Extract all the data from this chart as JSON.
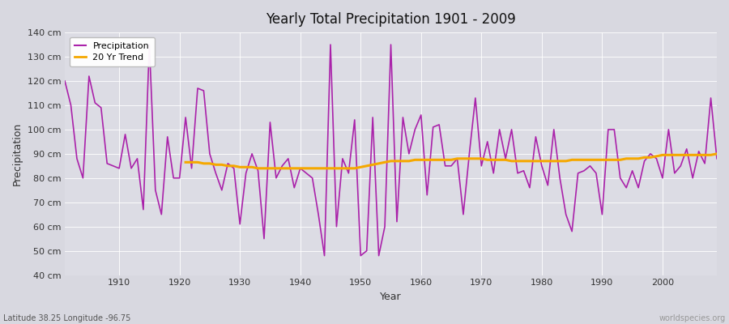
{
  "title": "Yearly Total Precipitation 1901 - 2009",
  "xlabel": "Year",
  "ylabel": "Precipitation",
  "subtitle": "Latitude 38.25 Longitude -96.75",
  "watermark": "worldspecies.org",
  "background_color": "#d8d8e0",
  "plot_bg_color": "#dcdce4",
  "line_color": "#aa22aa",
  "trend_color": "#f5a800",
  "ylim": [
    40,
    140
  ],
  "xlim": [
    1901,
    2009
  ],
  "yticks": [
    40,
    50,
    60,
    70,
    80,
    90,
    100,
    110,
    120,
    130,
    140
  ],
  "xticks": [
    1910,
    1920,
    1930,
    1940,
    1950,
    1960,
    1970,
    1980,
    1990,
    2000
  ],
  "years": [
    1901,
    1902,
    1903,
    1904,
    1905,
    1906,
    1907,
    1908,
    1909,
    1910,
    1911,
    1912,
    1913,
    1914,
    1915,
    1916,
    1917,
    1918,
    1919,
    1920,
    1921,
    1922,
    1923,
    1924,
    1925,
    1926,
    1927,
    1928,
    1929,
    1930,
    1931,
    1932,
    1933,
    1934,
    1935,
    1936,
    1937,
    1938,
    1939,
    1940,
    1941,
    1942,
    1943,
    1944,
    1945,
    1946,
    1947,
    1948,
    1949,
    1950,
    1951,
    1952,
    1953,
    1954,
    1955,
    1956,
    1957,
    1958,
    1959,
    1960,
    1961,
    1962,
    1963,
    1964,
    1965,
    1966,
    1967,
    1968,
    1969,
    1970,
    1971,
    1972,
    1973,
    1974,
    1975,
    1976,
    1977,
    1978,
    1979,
    1980,
    1981,
    1982,
    1983,
    1984,
    1985,
    1986,
    1987,
    1988,
    1989,
    1990,
    1991,
    1992,
    1993,
    1994,
    1995,
    1996,
    1997,
    1998,
    1999,
    2000,
    2001,
    2002,
    2003,
    2004,
    2005,
    2006,
    2007,
    2008,
    2009
  ],
  "precipitation": [
    120,
    110,
    88,
    80,
    122,
    111,
    109,
    86,
    85,
    84,
    98,
    84,
    88,
    67,
    135,
    75,
    65,
    97,
    80,
    80,
    105,
    84,
    117,
    116,
    90,
    82,
    75,
    86,
    84,
    61,
    82,
    90,
    83,
    55,
    103,
    80,
    85,
    88,
    76,
    84,
    82,
    80,
    65,
    48,
    135,
    60,
    88,
    82,
    104,
    48,
    50,
    105,
    48,
    60,
    135,
    62,
    105,
    90,
    100,
    106,
    73,
    101,
    102,
    85,
    85,
    88,
    65,
    90,
    113,
    85,
    95,
    82,
    100,
    88,
    100,
    82,
    83,
    76,
    97,
    85,
    77,
    100,
    80,
    65,
    58,
    82,
    83,
    85,
    82,
    65,
    100,
    100,
    80,
    76,
    83,
    76,
    87,
    90,
    88,
    80,
    100,
    82,
    85,
    92,
    80,
    91,
    86,
    113,
    88
  ],
  "trend_years": [
    1921,
    1922,
    1923,
    1924,
    1925,
    1926,
    1927,
    1928,
    1929,
    1930,
    1931,
    1932,
    1933,
    1934,
    1935,
    1936,
    1937,
    1938,
    1939,
    1940,
    1941,
    1942,
    1943,
    1944,
    1945,
    1946,
    1947,
    1948,
    1949,
    1950,
    1951,
    1952,
    1953,
    1954,
    1955,
    1956,
    1957,
    1958,
    1959,
    1960,
    1961,
    1962,
    1963,
    1964,
    1965,
    1966,
    1967,
    1968,
    1969,
    1970,
    1971,
    1972,
    1973,
    1974,
    1975,
    1976,
    1977,
    1978,
    1979,
    1980,
    1981,
    1982,
    1983,
    1984,
    1985,
    1986,
    1987,
    1988,
    1989,
    1990,
    1991,
    1992,
    1993,
    1994,
    1995,
    1996,
    1997,
    1998,
    1999,
    2000,
    2001,
    2002,
    2003,
    2004,
    2005,
    2006,
    2007,
    2008,
    2009
  ],
  "trend_values": [
    86.5,
    86.5,
    86.5,
    86.0,
    86.0,
    85.5,
    85.5,
    85.0,
    85.0,
    84.5,
    84.5,
    84.5,
    84.0,
    84.0,
    84.0,
    84.0,
    84.0,
    84.0,
    84.0,
    84.0,
    84.0,
    84.0,
    84.0,
    84.0,
    84.0,
    84.0,
    84.0,
    84.0,
    84.0,
    84.5,
    85.0,
    85.5,
    86.0,
    86.5,
    87.0,
    87.0,
    87.0,
    87.0,
    87.5,
    87.5,
    87.5,
    87.5,
    87.5,
    87.5,
    87.5,
    88.0,
    88.0,
    88.0,
    88.0,
    88.0,
    87.5,
    87.5,
    87.5,
    87.5,
    87.0,
    87.0,
    87.0,
    87.0,
    87.0,
    87.0,
    87.0,
    87.0,
    87.0,
    87.0,
    87.5,
    87.5,
    87.5,
    87.5,
    87.5,
    87.5,
    87.5,
    87.5,
    87.5,
    88.0,
    88.0,
    88.0,
    88.5,
    88.5,
    89.0,
    89.5,
    89.5,
    89.5,
    89.5,
    89.5,
    89.5,
    89.5,
    89.5,
    89.5,
    90.0
  ]
}
